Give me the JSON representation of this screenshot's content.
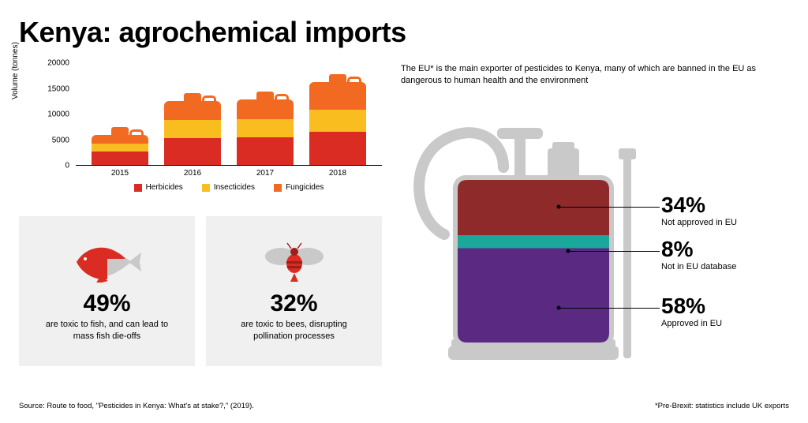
{
  "title": "Kenya: agrochemical imports",
  "colors": {
    "herbicides": "#db2c23",
    "insecticides": "#f9bd1f",
    "fungicides": "#f26a21",
    "card_bg": "#f0f0f0",
    "sprayer_grey": "#c9c9c9",
    "tank_not_approved": "#8e2a2a",
    "tank_not_db": "#1aa79c",
    "tank_approved": "#5a2a82"
  },
  "chart": {
    "type": "stacked-bar",
    "ylabel": "Volume (tonnes)",
    "ylim": [
      0,
      20000
    ],
    "ytick_step": 5000,
    "categories": [
      "2015",
      "2016",
      "2017",
      "2018"
    ],
    "series": [
      {
        "key": "herbicides",
        "label": "Herbicides",
        "color": "#db2c23"
      },
      {
        "key": "insecticides",
        "label": "Insecticides",
        "color": "#f9bd1f"
      },
      {
        "key": "fungicides",
        "label": "Fungicides",
        "color": "#f26a21"
      }
    ],
    "data": {
      "2015": {
        "herbicides": 2600,
        "insecticides": 1500,
        "fungicides": 1800
      },
      "2016": {
        "herbicides": 5300,
        "insecticides": 3400,
        "fungicides": 3800
      },
      "2017": {
        "herbicides": 5400,
        "insecticides": 3500,
        "fungicides": 3900
      },
      "2018": {
        "herbicides": 6500,
        "insecticides": 4300,
        "fungicides": 5400
      }
    }
  },
  "facts": {
    "fish": {
      "pct": "49%",
      "text": "are toxic to fish, and can lead to mass fish die-offs"
    },
    "bee": {
      "pct": "32%",
      "text": "are toxic to bees, disrupting pollination processes"
    }
  },
  "right": {
    "intro": "The EU* is the main exporter of pesticides to Kenya, many of which are banned in the EU as dangerous to human health and the environment",
    "stats": [
      {
        "pct": "34%",
        "label": "Not approved in EU"
      },
      {
        "pct": "8%",
        "label": "Not in EU database"
      },
      {
        "pct": "58%",
        "label": "Approved in EU"
      }
    ]
  },
  "source": "Source: Route to food, \"Pesticides in Kenya: What's at stake?,\" (2019).",
  "footnote": "*Pre-Brexit: statistics include UK exports"
}
